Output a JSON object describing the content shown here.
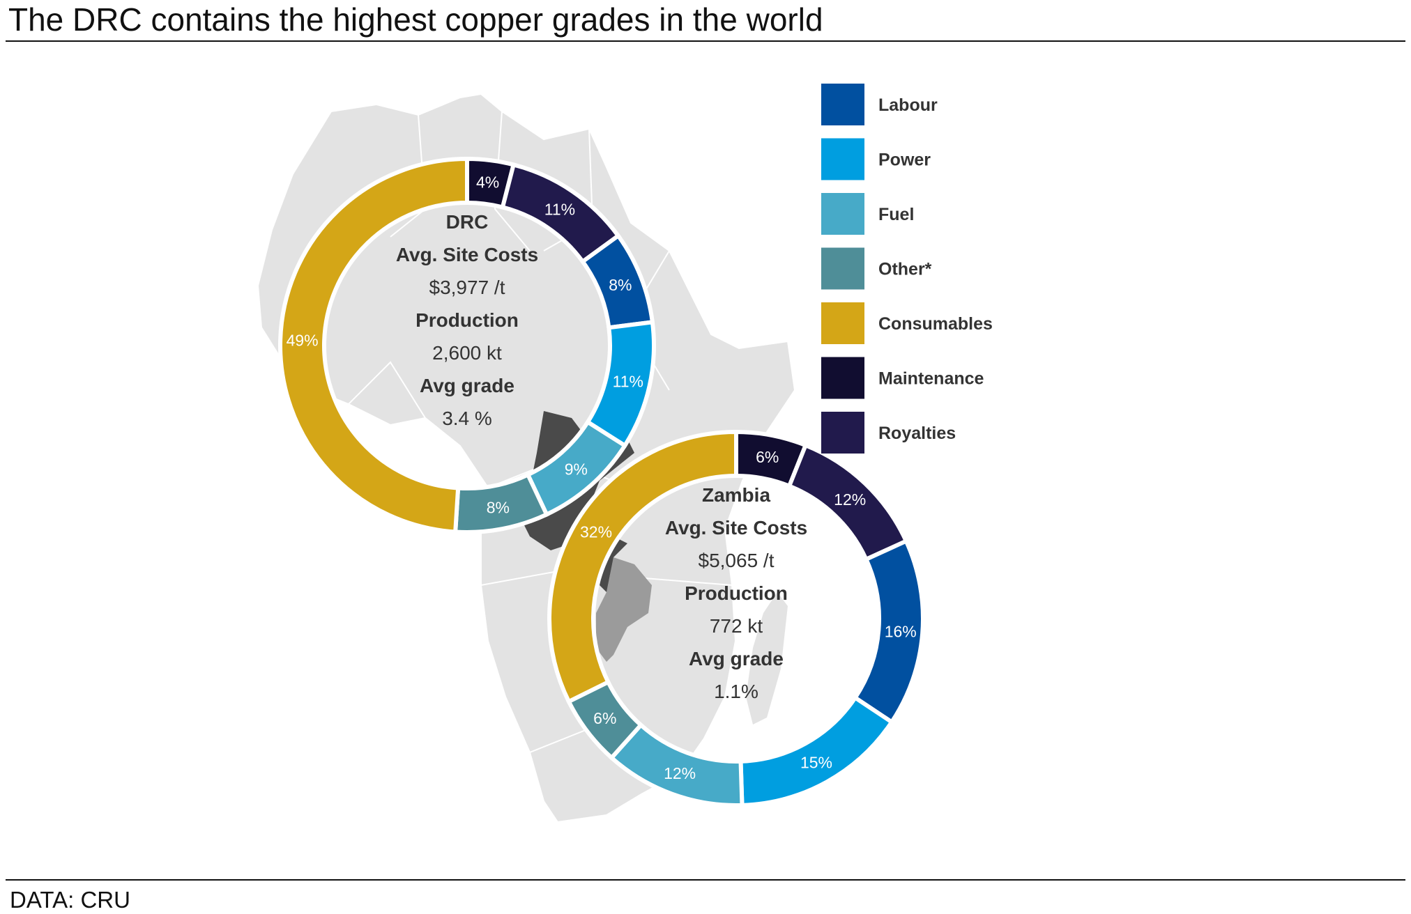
{
  "header": {
    "title": "The DRC contains the highest copper grades in the world"
  },
  "footer": {
    "source": "DATA: CRU"
  },
  "colors": {
    "Labour": "#0150a0",
    "Power": "#009ee0",
    "Fuel": "#47aac8",
    "Other*": "#4f8e98",
    "Consumables": "#d4a617",
    "Maintenance": "#110d30",
    "Royalties": "#211a4c",
    "map_land": "#e3e3e3",
    "map_border": "#ffffff",
    "drc_highlight": "#4a4a4a",
    "zambia_highlight": "#9b9b9b"
  },
  "chart_data": [
    {
      "type": "pie",
      "name": "DRC",
      "center_text": [
        "DRC",
        "Avg. Site Costs",
        "$3,977 /t",
        "Production",
        "2,600 kt",
        "Avg grade",
        "3.4 %"
      ],
      "categories": [
        "Maintenance",
        "Royalties",
        "Labour",
        "Power",
        "Fuel",
        "Other*",
        "Consumables"
      ],
      "values": [
        4,
        11,
        8,
        11,
        9,
        8,
        49
      ],
      "labels": [
        "4%",
        "11%",
        "8%",
        "11%",
        "9%",
        "8%",
        "49%"
      ]
    },
    {
      "type": "pie",
      "name": "Zambia",
      "center_text": [
        "Zambia",
        "Avg. Site Costs",
        "$5,065 /t",
        "Production",
        "772 kt",
        "Avg grade",
        "1.1%"
      ],
      "categories": [
        "Maintenance",
        "Royalties",
        "Labour",
        "Power",
        "Fuel",
        "Other*",
        "Consumables"
      ],
      "values": [
        6,
        12,
        16,
        15,
        12,
        6,
        32
      ],
      "labels": [
        "6%",
        "12%",
        "16%",
        "15%",
        "12%",
        "6%",
        "32%"
      ]
    }
  ],
  "legend": {
    "placement": "right",
    "items": [
      "Labour",
      "Power",
      "Fuel",
      "Other*",
      "Consumables",
      "Maintenance",
      "Royalties"
    ]
  }
}
